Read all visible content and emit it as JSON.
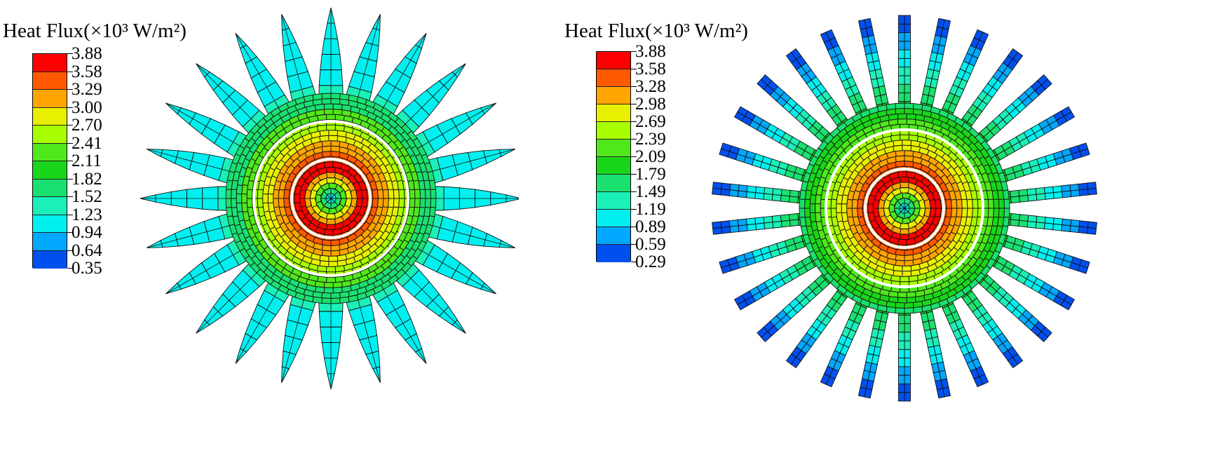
{
  "figure": {
    "panels": [
      {
        "id": "left",
        "legend": {
          "title": "Heat Flux(×10³ W/m²)",
          "labels": [
            "3.88",
            "3.58",
            "3.29",
            "3.00",
            "2.70",
            "2.41",
            "2.11",
            "1.82",
            "1.52",
            "1.23",
            "0.94",
            "0.64",
            "0.35"
          ]
        },
        "geometry_type": "triangular-fins",
        "fin_count": 24
      },
      {
        "id": "right",
        "legend": {
          "title": "Heat Flux(×10³ W/m²)",
          "labels": [
            "3.88",
            "3.58",
            "3.28",
            "2.98",
            "2.69",
            "2.39",
            "2.09",
            "1.79",
            "1.49",
            "1.19",
            "0.89",
            "0.59",
            "0.29"
          ]
        },
        "geometry_type": "rectangular-fins",
        "fin_count": 30
      }
    ],
    "colormap": [
      "#ff0000",
      "#ff5a00",
      "#ffa500",
      "#e8f000",
      "#a8ff00",
      "#50e81a",
      "#1ad61a",
      "#1ae070",
      "#1af0b8",
      "#00f0f0",
      "#00a8ff",
      "#0050f0",
      "#0000e0"
    ],
    "ring_color": "#ffffff",
    "mesh_color": "#111111"
  }
}
